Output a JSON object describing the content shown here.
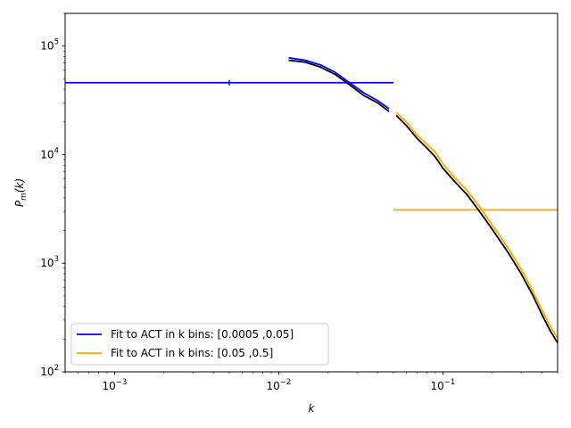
{
  "chart_data": {
    "type": "line",
    "title": "",
    "xlabel": "k",
    "ylabel": "P_m(k)",
    "xscale": "log",
    "yscale": "log",
    "xlim": [
      0.0005,
      0.5
    ],
    "ylim": [
      100,
      200000
    ],
    "grid": false,
    "legend_position": "lower-left",
    "x_ticks": [
      {
        "value": 0.001,
        "base": "10",
        "exp": "−3"
      },
      {
        "value": 0.01,
        "base": "10",
        "exp": "−2"
      },
      {
        "value": 0.1,
        "base": "10",
        "exp": "−1"
      }
    ],
    "y_ticks": [
      {
        "value": 100,
        "base": "10",
        "exp": "2"
      },
      {
        "value": 1000,
        "base": "10",
        "exp": "3"
      },
      {
        "value": 10000,
        "base": "10",
        "exp": "4"
      },
      {
        "value": 100000,
        "base": "10",
        "exp": "5"
      }
    ],
    "series": [
      {
        "name": "Fit to ACT in k bins: [0.0005 ,0.05]",
        "color": "#0000ff",
        "kind": "fit-line",
        "in_legend": true,
        "x": [
          0.0005,
          0.05
        ],
        "y": [
          46000,
          46000
        ]
      },
      {
        "name": "Fit to ACT in k bins: [0.05 ,0.5]",
        "color": "#ffa500",
        "kind": "fit-line",
        "in_legend": true,
        "x": [
          0.05,
          0.5
        ],
        "y": [
          3100,
          3100
        ]
      },
      {
        "color": "#000000",
        "kind": "curve",
        "in_legend": false,
        "x": [
          0.0115,
          0.0145,
          0.018,
          0.022,
          0.027,
          0.033,
          0.04,
          0.047
        ],
        "y": [
          74000,
          71000,
          64000,
          55000,
          44000,
          35000,
          30000,
          25000
        ]
      },
      {
        "color": "#0000ff",
        "kind": "curve",
        "in_legend": false,
        "x": [
          0.0115,
          0.0145,
          0.018,
          0.022,
          0.027,
          0.033,
          0.04,
          0.047
        ],
        "y": [
          78000,
          74000,
          67000,
          57500,
          46000,
          37000,
          31500,
          26500
        ]
      },
      {
        "color": "#000000",
        "kind": "curve",
        "in_legend": false,
        "x": [
          0.052,
          0.06,
          0.07,
          0.08,
          0.09,
          0.1,
          0.12,
          0.14,
          0.17,
          0.2,
          0.25,
          0.3,
          0.35,
          0.4,
          0.45,
          0.5
        ],
        "y": [
          23000,
          18500,
          14000,
          11500,
          9500,
          7500,
          5500,
          4300,
          2900,
          2050,
          1250,
          800,
          520,
          340,
          240,
          185
        ]
      },
      {
        "color": "#ffa500",
        "kind": "curve",
        "in_legend": false,
        "x": [
          0.052,
          0.06,
          0.07,
          0.08,
          0.09,
          0.1,
          0.12,
          0.14,
          0.17,
          0.2,
          0.25,
          0.3,
          0.35,
          0.4,
          0.45,
          0.5
        ],
        "y": [
          24500,
          20000,
          15000,
          12500,
          10500,
          8200,
          6000,
          4700,
          3200,
          2250,
          1380,
          880,
          570,
          375,
          265,
          205
        ]
      },
      {
        "color": "#0000ff",
        "kind": "marker",
        "in_legend": false,
        "x": [
          0.005
        ],
        "y": [
          46000
        ]
      }
    ]
  }
}
